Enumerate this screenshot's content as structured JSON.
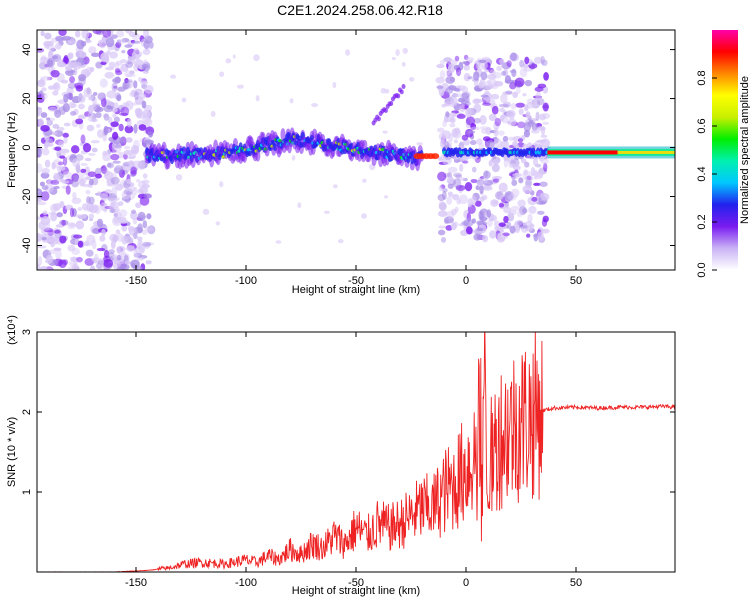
{
  "title": "C2E1.2024.258.06.42.R18",
  "colors": {
    "snr_line": "#ee2222",
    "scatter_light": "#d9c8f7",
    "scatter_mid": "#a98ee8",
    "scatter_dark": "#7a1bf0",
    "frame": "#000000"
  },
  "chart_data": [
    {
      "type": "heatmap",
      "title": "C2E1.2024.258.06.42.R18",
      "xlabel": "Height of straight line (km)",
      "ylabel": "Frequency (Hz)",
      "xlim": [
        -195,
        95
      ],
      "ylim": [
        -50,
        48
      ],
      "x_ticks": [
        -150,
        -100,
        -50,
        0,
        50
      ],
      "x_tick_labels": [
        "-150",
        "-100",
        "-50",
        "0",
        "50"
      ],
      "y_ticks": [
        -40,
        -20,
        0,
        20,
        40
      ],
      "y_tick_labels": [
        "-40",
        "-20",
        "0",
        "20",
        "40"
      ],
      "colorbar": {
        "label": "Normalized spectral amplitude",
        "range": [
          0,
          1
        ],
        "ticks": [
          0,
          0.2,
          0.4,
          0.6,
          0.8
        ],
        "tick_labels": [
          "0.0",
          "0.2",
          "0.4",
          "0.6",
          "0.8"
        ],
        "colormap": [
          "#ffffff",
          "#c9b3f5",
          "#7a1bf0",
          "#2222ee",
          "#00c8ff",
          "#00f0b0",
          "#00ee00",
          "#c8f000",
          "#ffff00",
          "#ff8800",
          "#ff0000",
          "#ff00aa"
        ]
      },
      "regions": [
        {
          "name": "noise",
          "x_range": [
            -195,
            -143
          ],
          "f_range": [
            -50,
            48
          ],
          "amplitude": 0.1
        },
        {
          "name": "noise",
          "x_range": [
            -12,
            37
          ],
          "f_range": [
            -38,
            38
          ],
          "amplitude": 0.1
        },
        {
          "name": "trace",
          "x_range": [
            -145,
            -20
          ],
          "amplitude": 0.4
        },
        {
          "name": "branch",
          "x_range": [
            -42,
            -28
          ],
          "f_range": [
            10,
            25
          ],
          "amplitude": 0.1
        },
        {
          "name": "carrier",
          "x_range": [
            37,
            95
          ],
          "f": -2,
          "amplitude": 0.9
        }
      ],
      "trace": {
        "x": [
          -145,
          -130,
          -115,
          -100,
          -90,
          -80,
          -70,
          -60,
          -50,
          -40,
          -30,
          -25,
          -20,
          -15,
          -10,
          0,
          10,
          20,
          30,
          37
        ],
        "f": [
          -3,
          -3,
          -3,
          -1,
          1,
          3,
          3,
          1,
          -1,
          -2,
          -3,
          -4,
          -4,
          -4,
          -3,
          -2,
          -2,
          -2,
          -2,
          -2
        ]
      }
    },
    {
      "type": "line",
      "xlabel": "Height of straight line (km)",
      "ylabel": "SNR (10 * v/v)",
      "y_multiplier": "(x10⁴)",
      "xlim": [
        -195,
        95
      ],
      "ylim": [
        0,
        3.0
      ],
      "x_ticks": [
        -150,
        -100,
        -50,
        0,
        50
      ],
      "x_tick_labels": [
        "-150",
        "-100",
        "-50",
        "0",
        "50"
      ],
      "y_ticks": [
        1,
        2,
        3
      ],
      "y_tick_labels": [
        "1",
        "2",
        "3"
      ],
      "series": [
        {
          "x": [
            -195,
            -160,
            -145,
            -135,
            -128,
            -120,
            -110,
            -100,
            -95,
            -90,
            -85,
            -80,
            -75,
            -70,
            -65,
            -60,
            -55,
            -50,
            -45,
            -40,
            -35,
            -30,
            -25,
            -20,
            -15,
            -10,
            -5,
            0,
            5,
            8,
            10,
            15,
            20,
            25,
            30,
            35,
            40,
            50,
            60,
            70,
            80,
            90,
            95
          ],
          "y": [
            0.0,
            0.0,
            0.02,
            0.05,
            0.1,
            0.12,
            0.1,
            0.15,
            0.12,
            0.2,
            0.16,
            0.28,
            0.22,
            0.35,
            0.3,
            0.45,
            0.35,
            0.55,
            0.45,
            0.6,
            0.55,
            0.6,
            0.7,
            0.8,
            0.8,
            1.0,
            1.1,
            1.3,
            1.5,
            2.5,
            1.3,
            1.7,
            1.8,
            1.9,
            1.95,
            2.02,
            2.05,
            2.06,
            2.05,
            2.06,
            2.06,
            2.07,
            2.06
          ]
        }
      ]
    }
  ]
}
